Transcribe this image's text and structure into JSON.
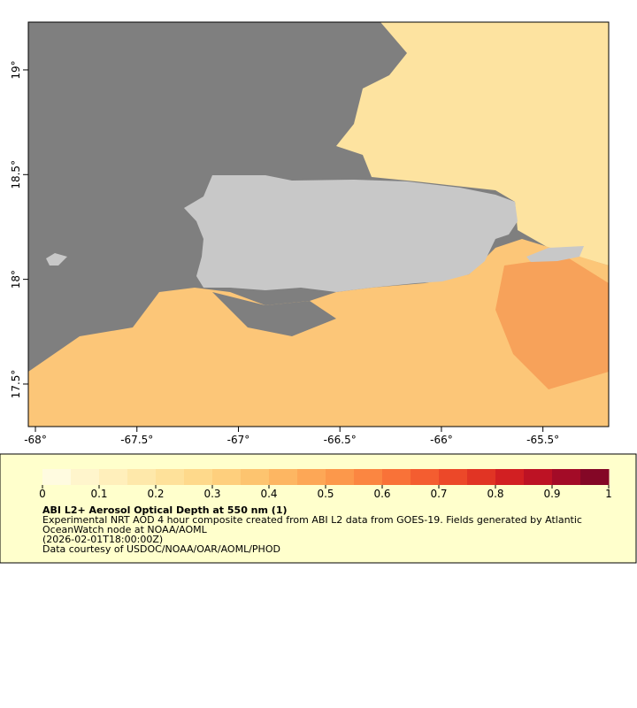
{
  "map": {
    "lonlim": [
      -68.035,
      -65.176
    ],
    "latlim": [
      17.297,
      19.228
    ],
    "lon_ticks": [
      {
        "value": -68,
        "label": "-68°"
      },
      {
        "value": -67.5,
        "label": "-67.5°"
      },
      {
        "value": -67,
        "label": "-67°"
      },
      {
        "value": -66.5,
        "label": "-66.5°"
      },
      {
        "value": -66,
        "label": "-66°"
      },
      {
        "value": -65.5,
        "label": "-65.5°"
      }
    ],
    "lat_ticks": [
      {
        "value": 17.5,
        "label": "17.5°"
      },
      {
        "value": 18,
        "label": "18°"
      },
      {
        "value": 18.5,
        "label": "18.5°"
      },
      {
        "value": 19,
        "label": "19°"
      }
    ]
  },
  "colorbar": {
    "lim": [
      0,
      1
    ],
    "ticks": [
      0,
      0.1,
      0.2,
      0.3,
      0.4,
      0.5,
      0.6,
      0.7,
      0.8,
      0.9,
      1
    ],
    "colors": [
      "#fffbe0",
      "#fff5cc",
      "#ffefbb",
      "#fee8aa",
      "#fee19a",
      "#fed98b",
      "#fecf7d",
      "#fdc46f",
      "#fdb662",
      "#fda756",
      "#fc984b",
      "#fb8641",
      "#f97238",
      "#f45d30",
      "#ec4829",
      "#e13424",
      "#d21f22",
      "#bd1224",
      "#a30b27",
      "#840726"
    ]
  },
  "legend": {
    "title": "ABI L2+ Aerosol Optical Depth at 550 nm (1)",
    "description": "Experimental NRT AOD 4 hour composite created from ABI L2 data from GOES-19. Fields generated by Atlantic OceanWatch node at NOAA/AOML",
    "time": "(2026-02-01T18:00:00Z)",
    "credit": "Data courtesy of USDOC/NOAA/OAR/AOML/PHOD"
  }
}
